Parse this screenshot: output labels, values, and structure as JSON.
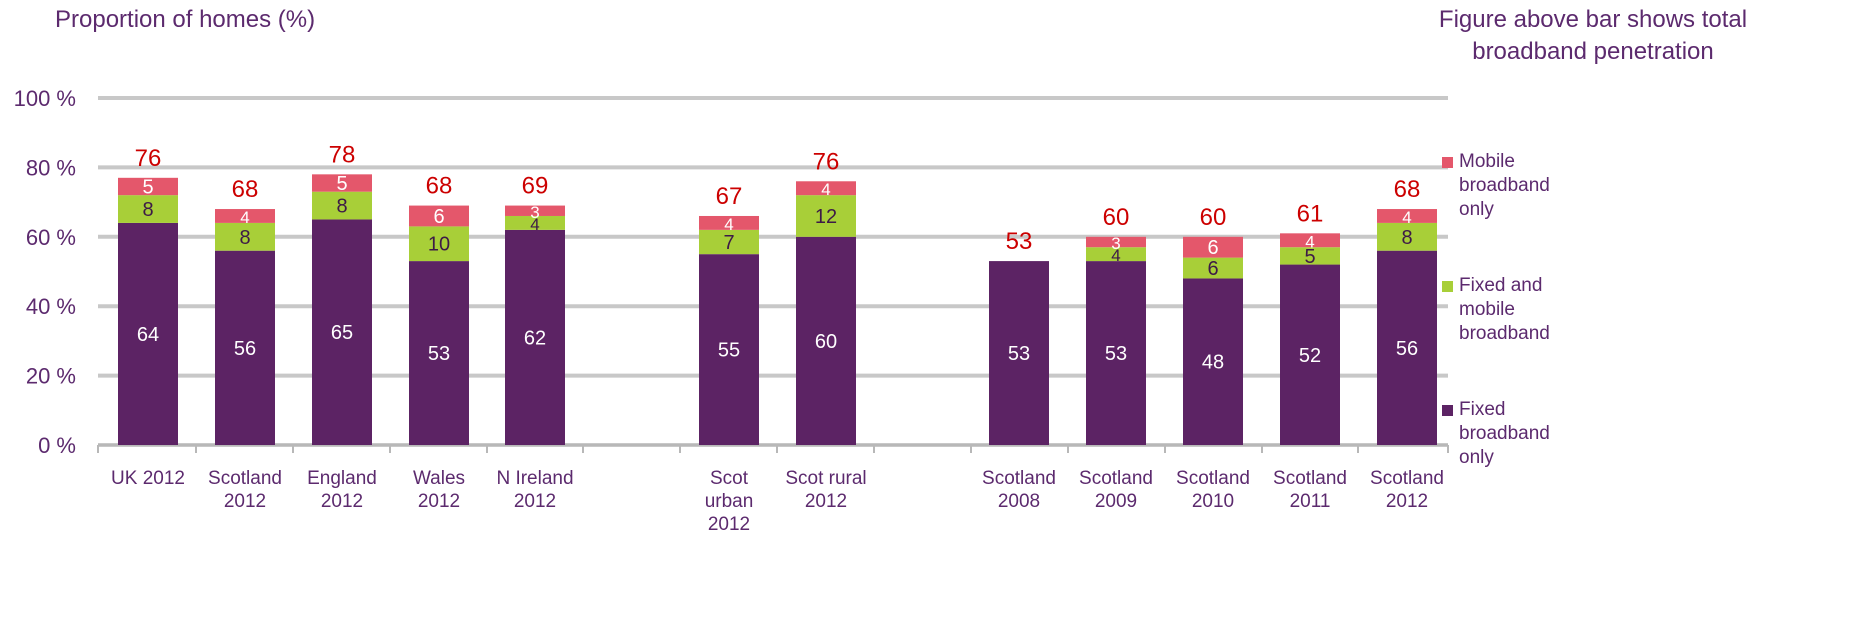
{
  "header": {
    "y_title": "Proportion of homes (%)",
    "note": "Figure above bar shows total broadband penetration"
  },
  "chart_data": {
    "type": "bar",
    "stacked": true,
    "ylabel": "Proportion of homes (%)",
    "ylim": [
      0,
      100
    ],
    "y_ticks": [
      0,
      20,
      40,
      60,
      80,
      100
    ],
    "y_tick_labels": [
      "0 %",
      "20 %",
      "40 %",
      "60 %",
      "80 %",
      "100 %"
    ],
    "grid": true,
    "legend_position": "right",
    "categories": [
      [
        "UK 2012"
      ],
      [
        "Scotland",
        "2012"
      ],
      [
        "England",
        "2012"
      ],
      [
        "Wales",
        "2012"
      ],
      [
        "N Ireland",
        "2012"
      ],
      [
        "Scot",
        "urban",
        "2012"
      ],
      [
        "Scot rural",
        "2012"
      ],
      [
        "Scotland",
        "2008"
      ],
      [
        "Scotland",
        "2009"
      ],
      [
        "Scotland",
        "2010"
      ],
      [
        "Scotland",
        "2011"
      ],
      [
        "Scotland",
        "2012"
      ]
    ],
    "groups": [
      [
        0,
        1,
        2,
        3,
        4
      ],
      [
        5,
        6
      ],
      [
        7,
        8,
        9,
        10,
        11
      ]
    ],
    "series": [
      {
        "name": "Fixed broadband only",
        "color": "#5c2364",
        "label_color": "#ffffff",
        "values": [
          64,
          56,
          65,
          53,
          62,
          55,
          60,
          53,
          53,
          48,
          52,
          56
        ]
      },
      {
        "name": "Fixed and mobile broadband",
        "color": "#a8cf38",
        "label_color": "#3d1a47",
        "values": [
          8,
          8,
          8,
          10,
          4,
          7,
          12,
          0,
          4,
          6,
          5,
          8
        ]
      },
      {
        "name": "Mobile broadband only",
        "color": "#e4576b",
        "label_color": "#ffffff",
        "values": [
          5,
          4,
          5,
          6,
          3,
          4,
          4,
          0,
          3,
          6,
          4,
          4
        ]
      }
    ],
    "totals": [
      76,
      68,
      78,
      68,
      69,
      67,
      76,
      53,
      60,
      60,
      61,
      68
    ],
    "total_label_color": "#cc0000"
  }
}
